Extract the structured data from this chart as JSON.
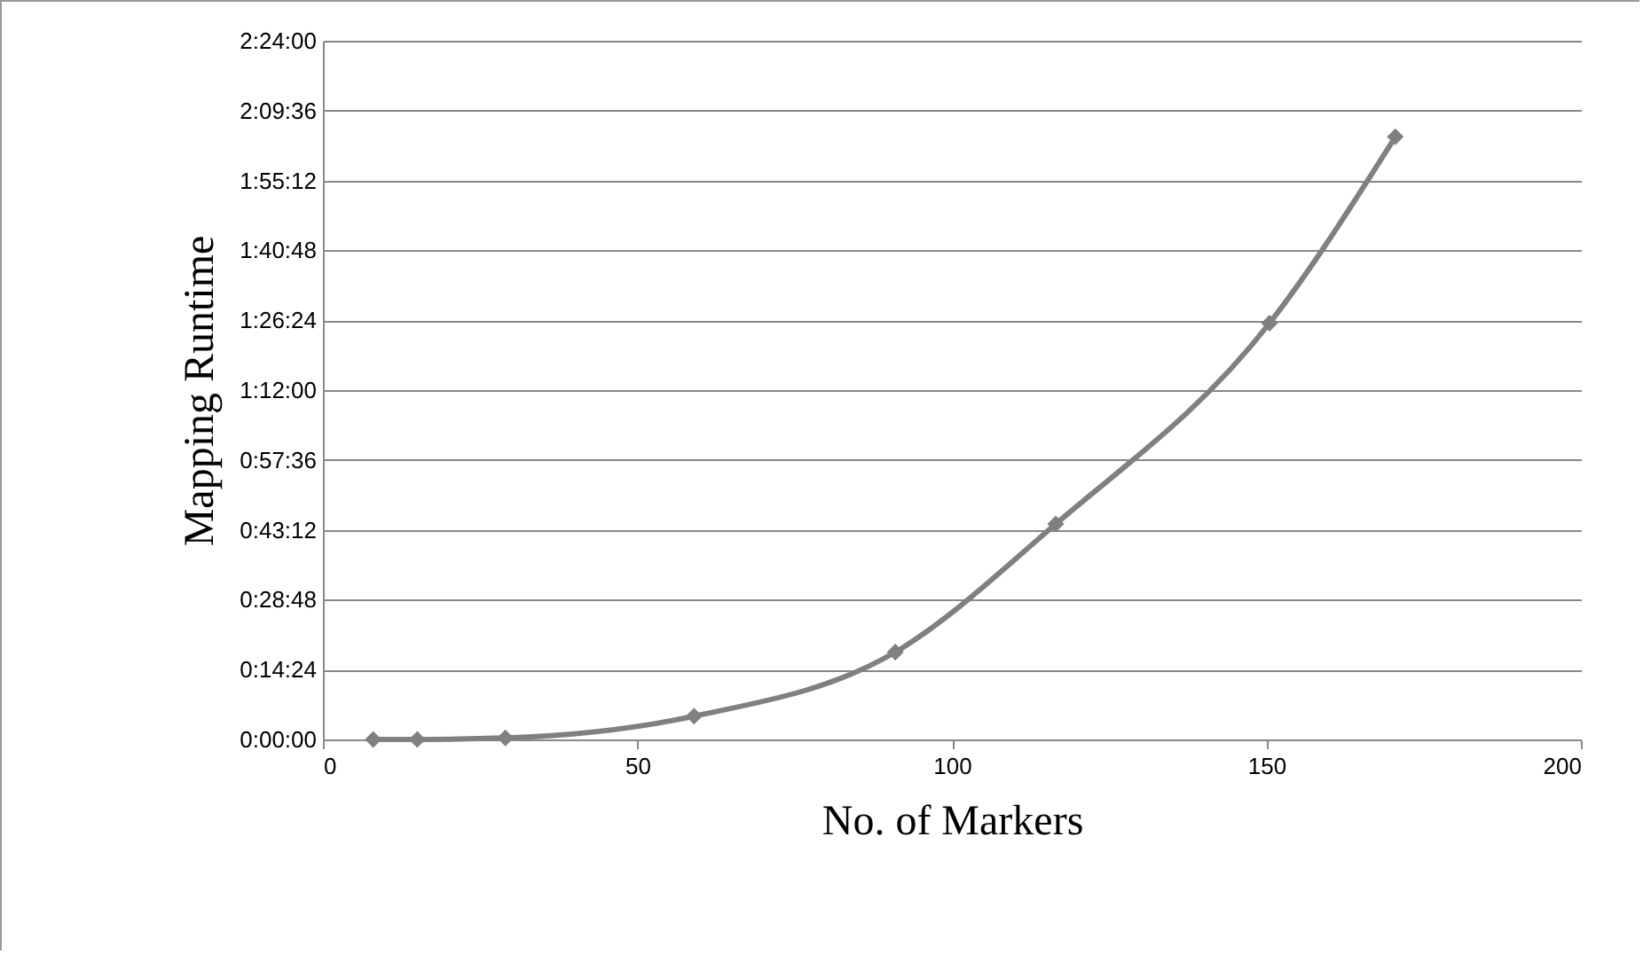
{
  "chart_data": {
    "type": "line",
    "xlabel": "No. of Markers",
    "ylabel": "Mapping Runtime",
    "x": [
      8,
      15,
      29,
      59,
      91,
      116.5,
      150.5,
      170.5
    ],
    "series": [
      {
        "color": "#808080",
        "values": [
          0,
          0,
          0.005,
          0.08,
          0.3,
          0.74,
          1.43,
          2.07
        ]
      }
    ],
    "xlim": [
      0,
      200
    ],
    "xticks": [
      0,
      50,
      100,
      150,
      200
    ],
    "ylim": [
      0,
      2.4
    ],
    "yticks": [
      {
        "value": 0,
        "label": "0:00:00"
      },
      {
        "value": 0.24,
        "label": "0:14:24"
      },
      {
        "value": 0.48,
        "label": "0:28:48"
      },
      {
        "value": 0.72,
        "label": "0:43:12"
      },
      {
        "value": 0.96,
        "label": "0:57:36"
      },
      {
        "value": 1.2,
        "label": "1:12:00"
      },
      {
        "value": 1.44,
        "label": "1:26:24"
      },
      {
        "value": 1.68,
        "label": "1:40:48"
      },
      {
        "value": 1.92,
        "label": "1:55:12"
      },
      {
        "value": 2.16,
        "label": "2:09:36"
      },
      {
        "value": 2.4,
        "label": "2:24:00"
      }
    ],
    "grid": "y",
    "marker": "diamond",
    "line_style": "solid"
  }
}
